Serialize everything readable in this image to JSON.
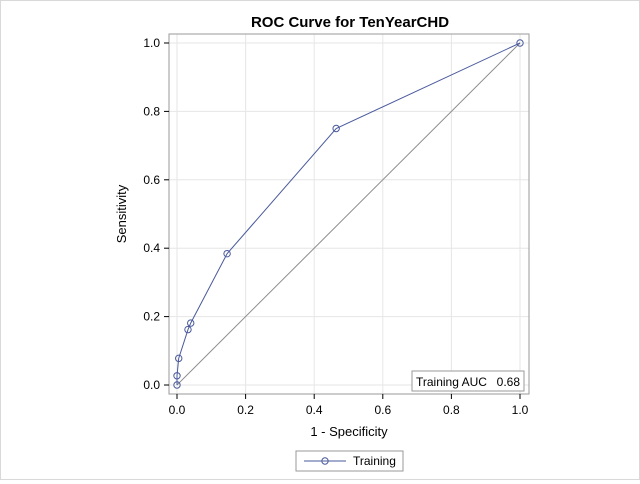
{
  "chart_data": {
    "type": "line",
    "title": "ROC Curve for TenYearCHD",
    "xlabel": "1 - Specificity",
    "ylabel": "Sensitivity",
    "xlim": [
      0,
      1
    ],
    "ylim": [
      0,
      1
    ],
    "x_ticks": [
      "0.0",
      "0.2",
      "0.4",
      "0.6",
      "0.8",
      "1.0"
    ],
    "y_ticks": [
      "0.0",
      "0.2",
      "0.4",
      "0.6",
      "0.8",
      "1.0"
    ],
    "grid": true,
    "legend_position": "bottom",
    "series": [
      {
        "name": "Training",
        "color": "#4a5a9c",
        "marker": "circle",
        "x": [
          0.0,
          0.0,
          0.005,
          0.032,
          0.04,
          0.146,
          0.464,
          1.0
        ],
        "y": [
          0.0,
          0.027,
          0.078,
          0.162,
          0.181,
          0.384,
          0.75,
          1.0
        ]
      }
    ],
    "reference_line": {
      "x": [
        0,
        1
      ],
      "y": [
        0,
        1
      ],
      "color": "#8c8c8c"
    },
    "inset": {
      "label": "Training AUC",
      "value": "0.68"
    }
  }
}
